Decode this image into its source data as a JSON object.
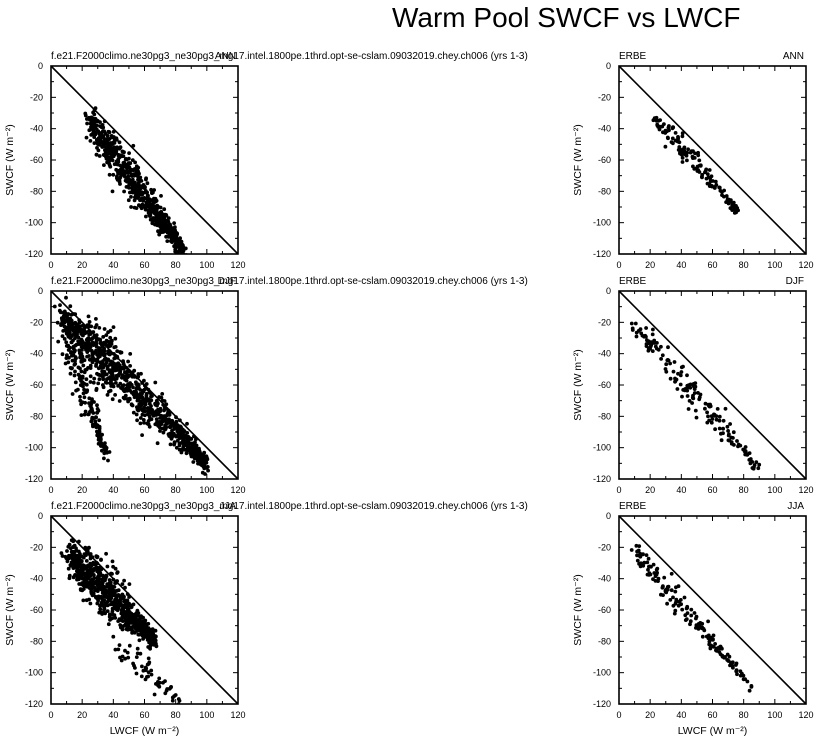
{
  "page": {
    "title": "Warm Pool SWCF vs LWCF"
  },
  "axes_common": {
    "xlabel": "LWCF (W m⁻²)",
    "ylabel": "SWCF (W m⁻²)",
    "xlim": [
      0,
      120
    ],
    "ylim": [
      -120,
      0
    ],
    "xticks": [
      "0",
      "20",
      "40",
      "60",
      "80",
      "100",
      "120"
    ],
    "yticks": [
      "0",
      "-20",
      "-40",
      "-60",
      "-80",
      "-100",
      "-120"
    ]
  },
  "chart_data": [
    {
      "type": "scatter",
      "panel": "model-ann",
      "left_label": "f.e21.F2000climo.ne30pg3_ne30pg3_mg17.intel.1800pe.1thrd.opt-se-cslam.09032019.chey.ch006 (yrs 1-3)",
      "right_label": "ANN",
      "xlim": [
        0,
        120
      ],
      "ylim": [
        -120,
        0
      ],
      "reference_line": "y = -x",
      "clusters": [
        {
          "x": [
            25,
            85
          ],
          "y": [
            -35,
            -118
          ],
          "spread": 8,
          "n": 700
        }
      ]
    },
    {
      "type": "scatter",
      "panel": "obs-ann",
      "left_label": "ERBE",
      "right_label": "ANN",
      "xlim": [
        0,
        120
      ],
      "ylim": [
        -120,
        0
      ],
      "reference_line": "y = -x",
      "clusters": [
        {
          "x": [
            22,
            77
          ],
          "y": [
            -33,
            -93
          ],
          "spread": 5,
          "n": 140
        }
      ]
    },
    {
      "type": "scatter",
      "panel": "model-djf",
      "left_label": "f.e21.F2000climo.ne30pg3_ne30pg3_mg17.intel.1800pe.1thrd.opt-se-cslam.09032019.chey.ch006 (yrs 1-3)",
      "right_label": "DJF",
      "xlim": [
        0,
        120
      ],
      "ylim": [
        -120,
        0
      ],
      "reference_line": "y = -x",
      "clusters": [
        {
          "x": [
            8,
            100
          ],
          "y": [
            -18,
            -110
          ],
          "spread": 10,
          "n": 900
        },
        {
          "x": [
            8,
            35
          ],
          "y": [
            -20,
            -105
          ],
          "spread": 8,
          "n": 180
        }
      ]
    },
    {
      "type": "scatter",
      "panel": "obs-djf",
      "left_label": "ERBE",
      "right_label": "DJF",
      "xlim": [
        0,
        120
      ],
      "ylim": [
        -120,
        0
      ],
      "reference_line": "y = -x",
      "clusters": [
        {
          "x": [
            10,
            90
          ],
          "y": [
            -23,
            -113
          ],
          "spread": 7,
          "n": 160
        }
      ]
    },
    {
      "type": "scatter",
      "panel": "model-jja",
      "left_label": "f.e21.F2000climo.ne30pg3_ne30pg3_mg17.intel.1800pe.1thrd.opt-se-cslam.09032019.chey.ch006 (yrs 1-3)",
      "right_label": "JJA",
      "xlim": [
        0,
        120
      ],
      "ylim": [
        -120,
        0
      ],
      "reference_line": "y = -x",
      "clusters": [
        {
          "x": [
            12,
            67
          ],
          "y": [
            -25,
            -80
          ],
          "spread": 9,
          "n": 800
        },
        {
          "x": [
            40,
            83
          ],
          "y": [
            -80,
            -118
          ],
          "spread": 6,
          "n": 60
        }
      ]
    },
    {
      "type": "scatter",
      "panel": "obs-jja",
      "left_label": "ERBE",
      "right_label": "JJA",
      "xlim": [
        0,
        120
      ],
      "ylim": [
        -120,
        0
      ],
      "reference_line": "y = -x",
      "clusters": [
        {
          "x": [
            10,
            85
          ],
          "y": [
            -23,
            -108
          ],
          "spread": 5,
          "n": 160
        }
      ]
    }
  ]
}
